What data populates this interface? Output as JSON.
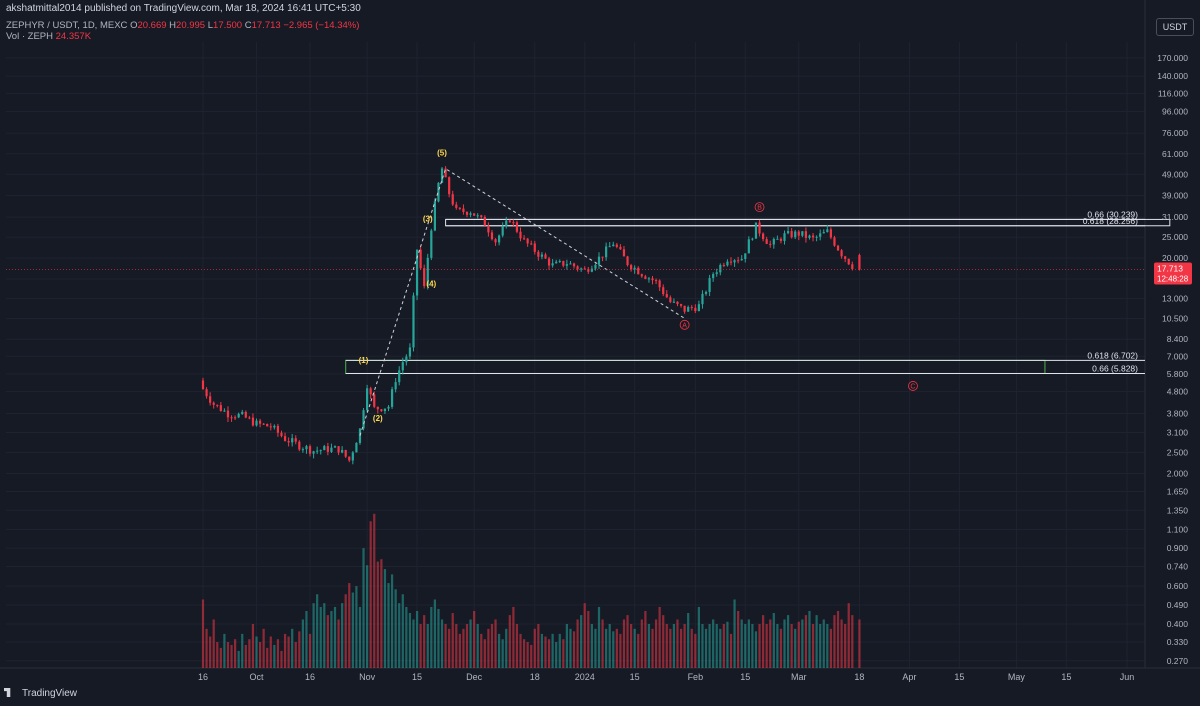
{
  "header": {
    "publisher": "akshatmittal2014 published on TradingView.com, Mar 18, 2024 16:41 UTC+5:30",
    "symbol": "ZEPHYR / USDT, 1D, MEXC",
    "ohlc": {
      "o_label": "O",
      "o": "20.669",
      "h_label": "H",
      "h": "20.995",
      "l_label": "L",
      "l": "17.500",
      "c_label": "C",
      "c": "17.713",
      "change": "−2.965 (−14.34%)"
    },
    "volume": {
      "label": "Vol · ZEPH",
      "value": "24.357K"
    }
  },
  "currency": "USDT",
  "price_tag": {
    "price": "17.713",
    "countdown": "12:48:28"
  },
  "footer": {
    "logo_text": "TradingView"
  },
  "colors": {
    "background": "#161a25",
    "up": "#26a69a",
    "down": "#f23645",
    "grid": "#1f2330",
    "wave_label": "#ffd84d",
    "abc_label": "#f23645",
    "fib_box_upper": "#e0e3eb",
    "fib_box_lower": "#4caf50"
  },
  "chart_data": {
    "type": "candlestick",
    "y_scale": "log",
    "y_range": [
      0.25,
      185
    ],
    "y_ticks": [
      "170.000",
      "140.000",
      "116.000",
      "96.000",
      "76.000",
      "61.000",
      "49.000",
      "39.000",
      "31.000",
      "25.000",
      "20.000",
      "16.000",
      "13.000",
      "10.500",
      "8.400",
      "7.000",
      "5.800",
      "4.800",
      "3.800",
      "3.100",
      "2.500",
      "2.000",
      "1.650",
      "1.350",
      "1.100",
      "0.900",
      "0.740",
      "0.600",
      "0.490",
      "0.400",
      "0.330",
      "0.270"
    ],
    "x_ticks": [
      {
        "date": "2023-09-16",
        "label": "16"
      },
      {
        "date": "2023-10-01",
        "label": "Oct"
      },
      {
        "date": "2023-10-16",
        "label": "16"
      },
      {
        "date": "2023-11-01",
        "label": "Nov"
      },
      {
        "date": "2023-11-15",
        "label": "15"
      },
      {
        "date": "2023-12-01",
        "label": "Dec"
      },
      {
        "date": "2023-12-18",
        "label": "18"
      },
      {
        "date": "2024-01-01",
        "label": "2024"
      },
      {
        "date": "2024-01-15",
        "label": "15"
      },
      {
        "date": "2024-02-01",
        "label": "Feb"
      },
      {
        "date": "2024-02-15",
        "label": "15"
      },
      {
        "date": "2024-03-01",
        "label": "Mar"
      },
      {
        "date": "2024-03-18",
        "label": "18"
      },
      {
        "date": "2024-04-01",
        "label": "Apr"
      },
      {
        "date": "2024-04-15",
        "label": "15"
      },
      {
        "date": "2024-05-01",
        "label": "May"
      },
      {
        "date": "2024-05-15",
        "label": "15"
      },
      {
        "date": "2024-06-01",
        "label": "Jun"
      }
    ],
    "price_path": [
      [
        "2023-09-16",
        5.2
      ],
      [
        "2023-09-20",
        4.2
      ],
      [
        "2023-09-24",
        3.8
      ],
      [
        "2023-09-28",
        3.7
      ],
      [
        "2023-10-02",
        3.4
      ],
      [
        "2023-10-06",
        3.3
      ],
      [
        "2023-10-10",
        2.9
      ],
      [
        "2023-10-14",
        2.7
      ],
      [
        "2023-10-18",
        2.55
      ],
      [
        "2023-10-22",
        2.6
      ],
      [
        "2023-10-25",
        2.6
      ],
      [
        "2023-10-28",
        2.3
      ],
      [
        "2023-10-31",
        3.2
      ],
      [
        "2023-11-02",
        5.2
      ],
      [
        "2023-11-04",
        4.0
      ],
      [
        "2023-11-08",
        4.1
      ],
      [
        "2023-11-10",
        5.5
      ],
      [
        "2023-11-12",
        6.6
      ],
      [
        "2023-11-14",
        7.5
      ],
      [
        "2023-11-16",
        22.0
      ],
      [
        "2023-11-18",
        14.5
      ],
      [
        "2023-11-20",
        28.0
      ],
      [
        "2023-11-22",
        44.0
      ],
      [
        "2023-11-23",
        52.0
      ],
      [
        "2023-11-25",
        40.0
      ],
      [
        "2023-11-27",
        33.0
      ],
      [
        "2023-12-01",
        33.0
      ],
      [
        "2023-12-05",
        29.0
      ],
      [
        "2023-12-08",
        24.0
      ],
      [
        "2023-12-12",
        30.5
      ],
      [
        "2023-12-16",
        24.0
      ],
      [
        "2023-12-20",
        21.0
      ],
      [
        "2023-12-24",
        18.5
      ],
      [
        "2023-12-28",
        19.0
      ],
      [
        "2024-01-02",
        17.5
      ],
      [
        "2024-01-06",
        20.0
      ],
      [
        "2024-01-10",
        23.5
      ],
      [
        "2024-01-14",
        19.0
      ],
      [
        "2024-01-18",
        17.0
      ],
      [
        "2024-01-22",
        15.5
      ],
      [
        "2024-01-26",
        12.5
      ],
      [
        "2024-01-30",
        11.5
      ],
      [
        "2024-02-03",
        12.0
      ],
      [
        "2024-02-07",
        17.0
      ],
      [
        "2024-02-11",
        20.0
      ],
      [
        "2024-02-15",
        20.0
      ],
      [
        "2024-02-19",
        28.0
      ],
      [
        "2024-02-23",
        23.0
      ],
      [
        "2024-02-27",
        25.5
      ],
      [
        "2024-03-02",
        26.0
      ],
      [
        "2024-03-06",
        24.5
      ],
      [
        "2024-03-10",
        26.5
      ],
      [
        "2024-03-14",
        21.0
      ],
      [
        "2024-03-18",
        17.7
      ]
    ],
    "wave_labels": [
      {
        "label": "(1)",
        "date": "2023-10-31",
        "price": 6.5
      },
      {
        "label": "(2)",
        "date": "2023-11-04",
        "price": 3.5
      },
      {
        "label": "(3)",
        "date": "2023-11-18",
        "price": 29.5
      },
      {
        "label": "(4)",
        "date": "2023-11-19",
        "price": 14.8
      },
      {
        "label": "(5)",
        "date": "2023-11-22",
        "price": 60.0
      }
    ],
    "abc_labels": [
      {
        "label": "A",
        "date": "2024-01-29",
        "price": 9.8
      },
      {
        "label": "B",
        "date": "2024-02-19",
        "price": 34.5
      },
      {
        "label": "C",
        "date": "2024-04-02",
        "price": 5.1
      }
    ],
    "wave_path": [
      [
        "2023-10-30",
        3.0
      ],
      [
        "2023-11-23",
        52.0
      ],
      [
        "2024-01-29",
        10.5
      ]
    ],
    "fib_boxes": [
      {
        "name": "upper",
        "date_start": "2023-11-23",
        "date_end": "2024-06-13",
        "top": 30.239,
        "bottom": 28.256,
        "label_top": "0.66 (30.239)",
        "label_bottom": "0.618 (28.256)"
      },
      {
        "name": "lower",
        "date_start": "2023-10-26",
        "date_end": "2024-05-09",
        "top": 6.702,
        "bottom": 5.828,
        "label_top": "0.618 (6.702)",
        "label_bottom": "0.66 (5.828)"
      }
    ],
    "volume_approx": [
      0.52,
      0.38,
      0.35,
      0.42,
      0.33,
      0.31,
      0.36,
      0.33,
      0.32,
      0.34,
      0.3,
      0.36,
      0.32,
      0.34,
      0.4,
      0.35,
      0.33,
      0.38,
      0.31,
      0.35,
      0.32,
      0.34,
      0.3,
      0.36,
      0.35,
      0.38,
      0.33,
      0.37,
      0.42,
      0.46,
      0.36,
      0.5,
      0.55,
      0.48,
      0.5,
      0.44,
      0.46,
      0.48,
      0.42,
      0.5,
      0.55,
      0.62,
      0.56,
      0.6,
      0.48,
      0.9,
      0.75,
      1.2,
      1.3,
      0.78,
      0.8,
      0.72,
      0.62,
      0.68,
      0.58,
      0.5,
      0.55,
      0.48,
      0.45,
      0.42,
      0.46,
      0.4,
      0.44,
      0.4,
      0.48,
      0.52,
      0.47,
      0.42,
      0.4,
      0.38,
      0.45,
      0.4,
      0.36,
      0.38,
      0.4,
      0.42,
      0.46,
      0.4,
      0.36,
      0.34,
      0.38,
      0.4,
      0.42,
      0.36,
      0.34,
      0.38,
      0.44,
      0.48,
      0.4,
      0.36,
      0.34,
      0.33,
      0.32,
      0.38,
      0.4,
      0.36,
      0.35,
      0.34,
      0.36,
      0.33,
      0.36,
      0.34,
      0.4,
      0.38,
      0.37,
      0.42,
      0.44,
      0.5,
      0.46,
      0.4,
      0.38,
      0.48,
      0.42,
      0.38,
      0.4,
      0.37,
      0.38,
      0.36,
      0.42,
      0.44,
      0.4,
      0.38,
      0.36,
      0.42,
      0.46,
      0.4,
      0.38,
      0.42,
      0.48,
      0.44,
      0.4,
      0.38,
      0.4,
      0.42,
      0.38,
      0.4,
      0.45,
      0.38,
      0.36,
      0.48,
      0.4,
      0.38,
      0.4,
      0.42,
      0.4,
      0.38,
      0.4,
      0.41,
      0.36,
      0.52,
      0.46,
      0.42,
      0.4,
      0.42,
      0.4,
      0.37,
      0.4,
      0.44,
      0.4,
      0.42,
      0.45,
      0.4,
      0.38,
      0.42,
      0.44,
      0.4,
      0.38,
      0.41,
      0.42,
      0.44,
      0.46,
      0.4,
      0.44,
      0.4,
      0.42,
      0.4,
      0.38,
      0.44,
      0.46,
      0.42,
      0.4,
      0.5,
      0.44,
      0.42,
      0.46,
      0.38,
      0.4,
      0.42,
      0.44,
      0.4,
      0.42,
      0.52,
      0.4
    ]
  }
}
